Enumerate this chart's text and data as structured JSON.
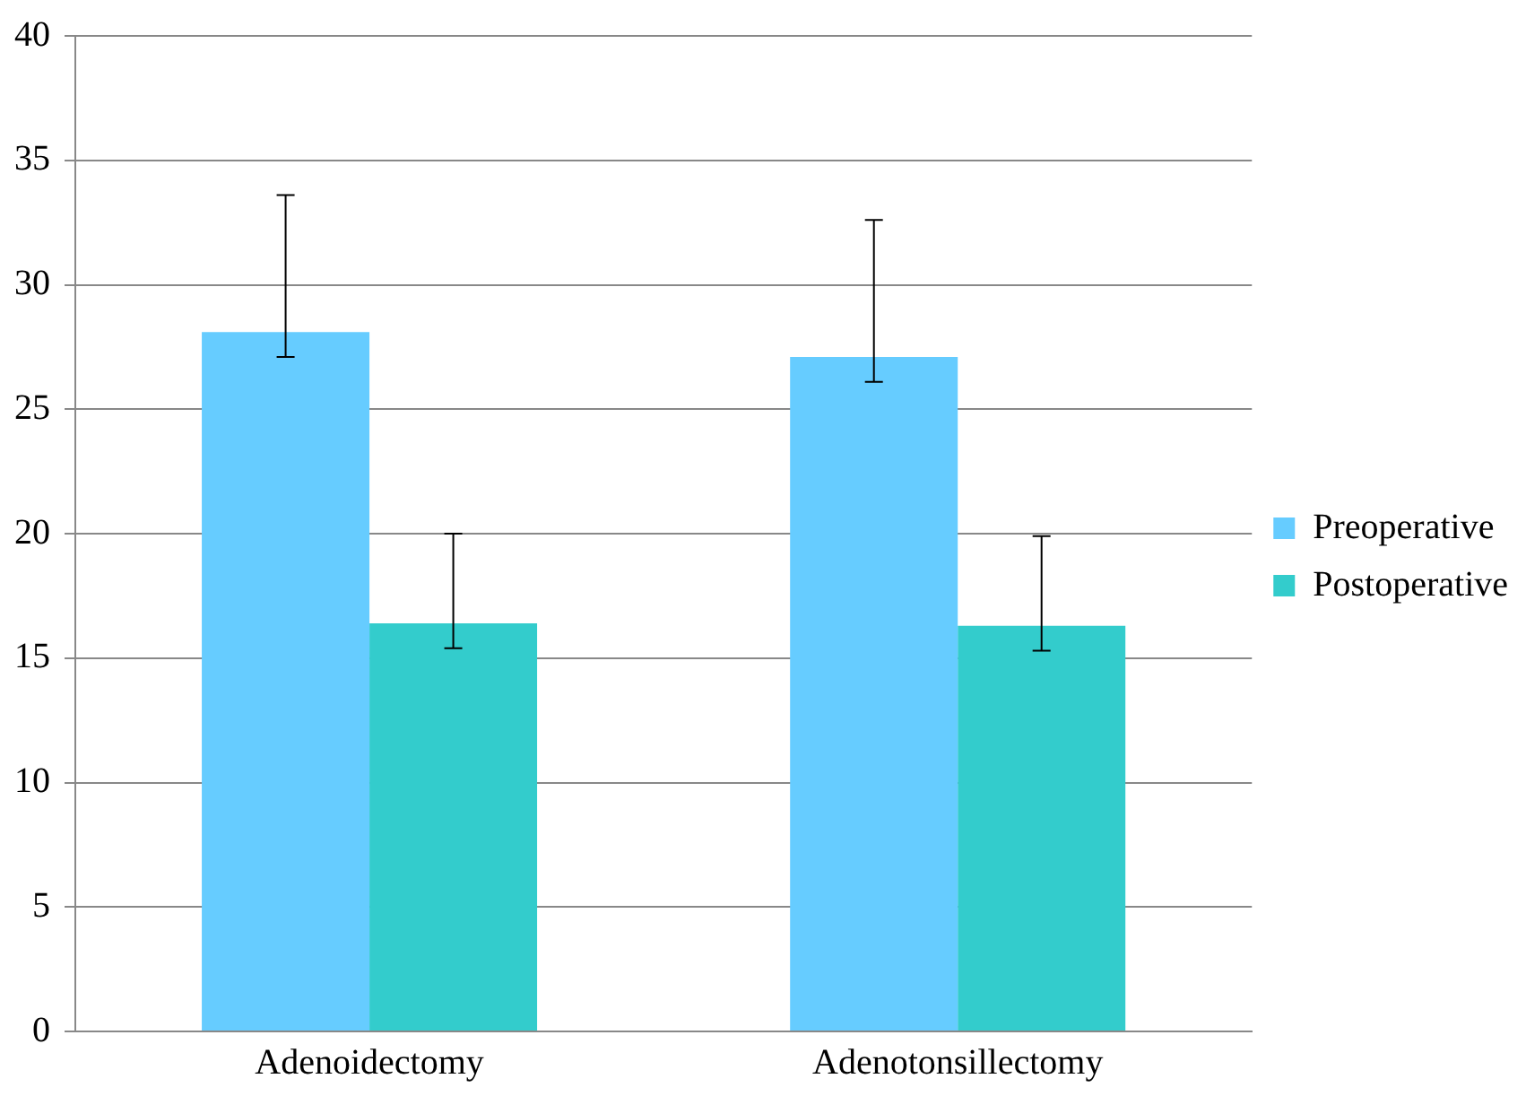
{
  "chart_data": {
    "type": "bar",
    "categories": [
      "Adenoidectomy",
      "Adenotonsillectomy"
    ],
    "series": [
      {
        "name": "Preoperative",
        "color": "#66ccff",
        "values": [
          28.1,
          27.1
        ],
        "errors": [
          [
            27.1,
            33.6
          ],
          [
            26.1,
            32.6
          ]
        ]
      },
      {
        "name": "Postoperative",
        "color": "#33cccc",
        "values": [
          16.4,
          16.3
        ],
        "errors": [
          [
            15.4,
            20.0
          ],
          [
            15.3,
            19.9
          ]
        ]
      }
    ],
    "ylim": [
      0,
      40
    ],
    "yticks": [
      0,
      5,
      10,
      15,
      20,
      25,
      30,
      35,
      40
    ],
    "grid": "y",
    "legend": "right"
  }
}
